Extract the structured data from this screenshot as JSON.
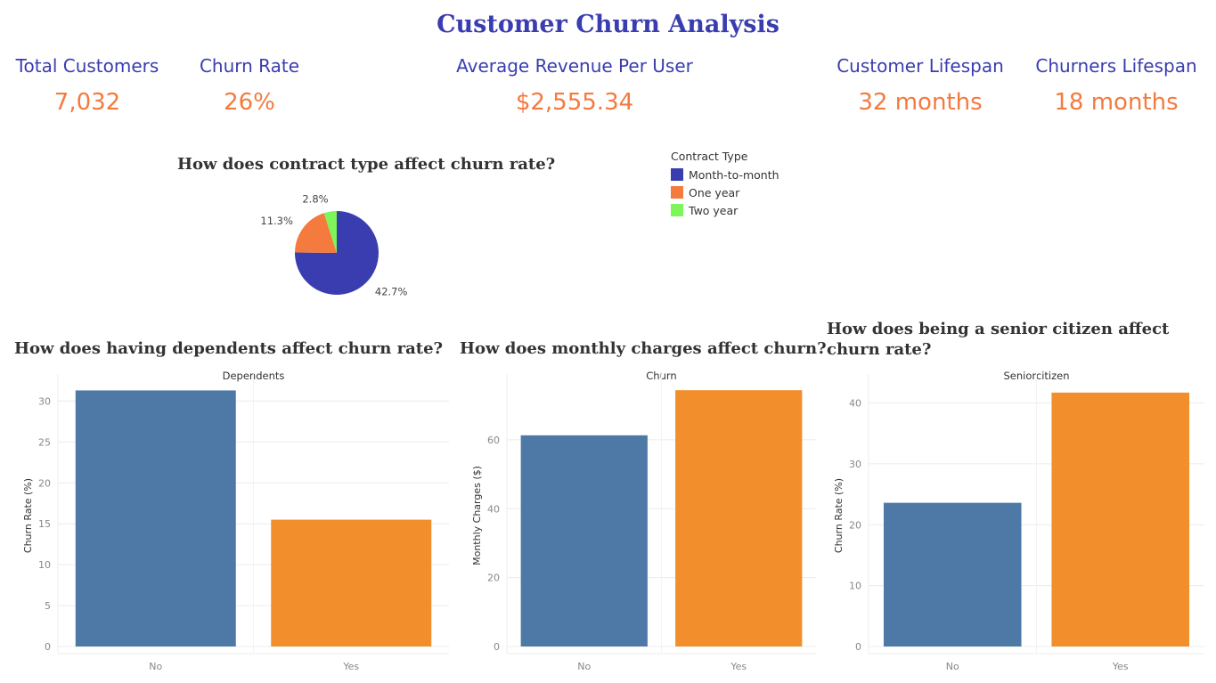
{
  "dashboard": {
    "title": "Customer Churn Analysis",
    "kpis": [
      {
        "label": "Total Customers",
        "value": "7,032"
      },
      {
        "label": "Churn Rate",
        "value": "26%"
      },
      {
        "label": "Average Revenue Per User",
        "value": "$2,555.34"
      },
      {
        "label": "Customer Lifespan",
        "value": "32 months"
      },
      {
        "label": "Churners Lifespan",
        "value": "18 months"
      }
    ],
    "questions": {
      "contract": "How does contract type affect churn rate?",
      "dependents": "How does having dependents affect churn rate?",
      "monthly": "How does monthly charges affect churn?",
      "senior": "How does being a senior citizen affect churn rate?"
    },
    "colors": {
      "accent": "#3a3db0",
      "kpi_value": "#f47a3e",
      "bar_no": "#4e79a7",
      "bar_yes": "#f28e2b"
    }
  },
  "chart_data": [
    {
      "type": "pie",
      "title": "",
      "legend_title": "Contract Type",
      "legend_position": "right",
      "categories": [
        "Month-to-month",
        "One year",
        "Two year"
      ],
      "values": [
        42.7,
        11.3,
        2.8
      ],
      "labels": [
        "42.7%",
        "11.3%",
        "2.8%"
      ],
      "colors": [
        "#3a3db0",
        "#f47a3e",
        "#7cf658"
      ]
    },
    {
      "type": "bar",
      "title": "Dependents",
      "categories": [
        "No",
        "Yes"
      ],
      "values": [
        31.3,
        15.5
      ],
      "xlabel": "",
      "ylabel": "Churn Rate (%)",
      "ylim": [
        0,
        32
      ],
      "yticks": [
        0,
        5,
        10,
        15,
        20,
        25,
        30
      ],
      "grid": true,
      "colors": [
        "#4e79a7",
        "#f28e2b"
      ]
    },
    {
      "type": "bar",
      "title": "Churn",
      "categories": [
        "No",
        "Yes"
      ],
      "values": [
        61.3,
        74.4
      ],
      "xlabel": "",
      "ylabel": "Monthly Charges ($)",
      "ylim": [
        0,
        76
      ],
      "yticks": [
        0,
        20,
        40,
        60
      ],
      "grid": true,
      "colors": [
        "#4e79a7",
        "#f28e2b"
      ]
    },
    {
      "type": "bar",
      "title": "Seniorcitizen",
      "categories": [
        "No",
        "Yes"
      ],
      "values": [
        23.6,
        41.7
      ],
      "xlabel": "",
      "ylabel": "Churn Rate (%)",
      "ylim": [
        0,
        43
      ],
      "yticks": [
        0,
        10,
        20,
        30,
        40
      ],
      "grid": true,
      "colors": [
        "#4e79a7",
        "#f28e2b"
      ]
    }
  ]
}
